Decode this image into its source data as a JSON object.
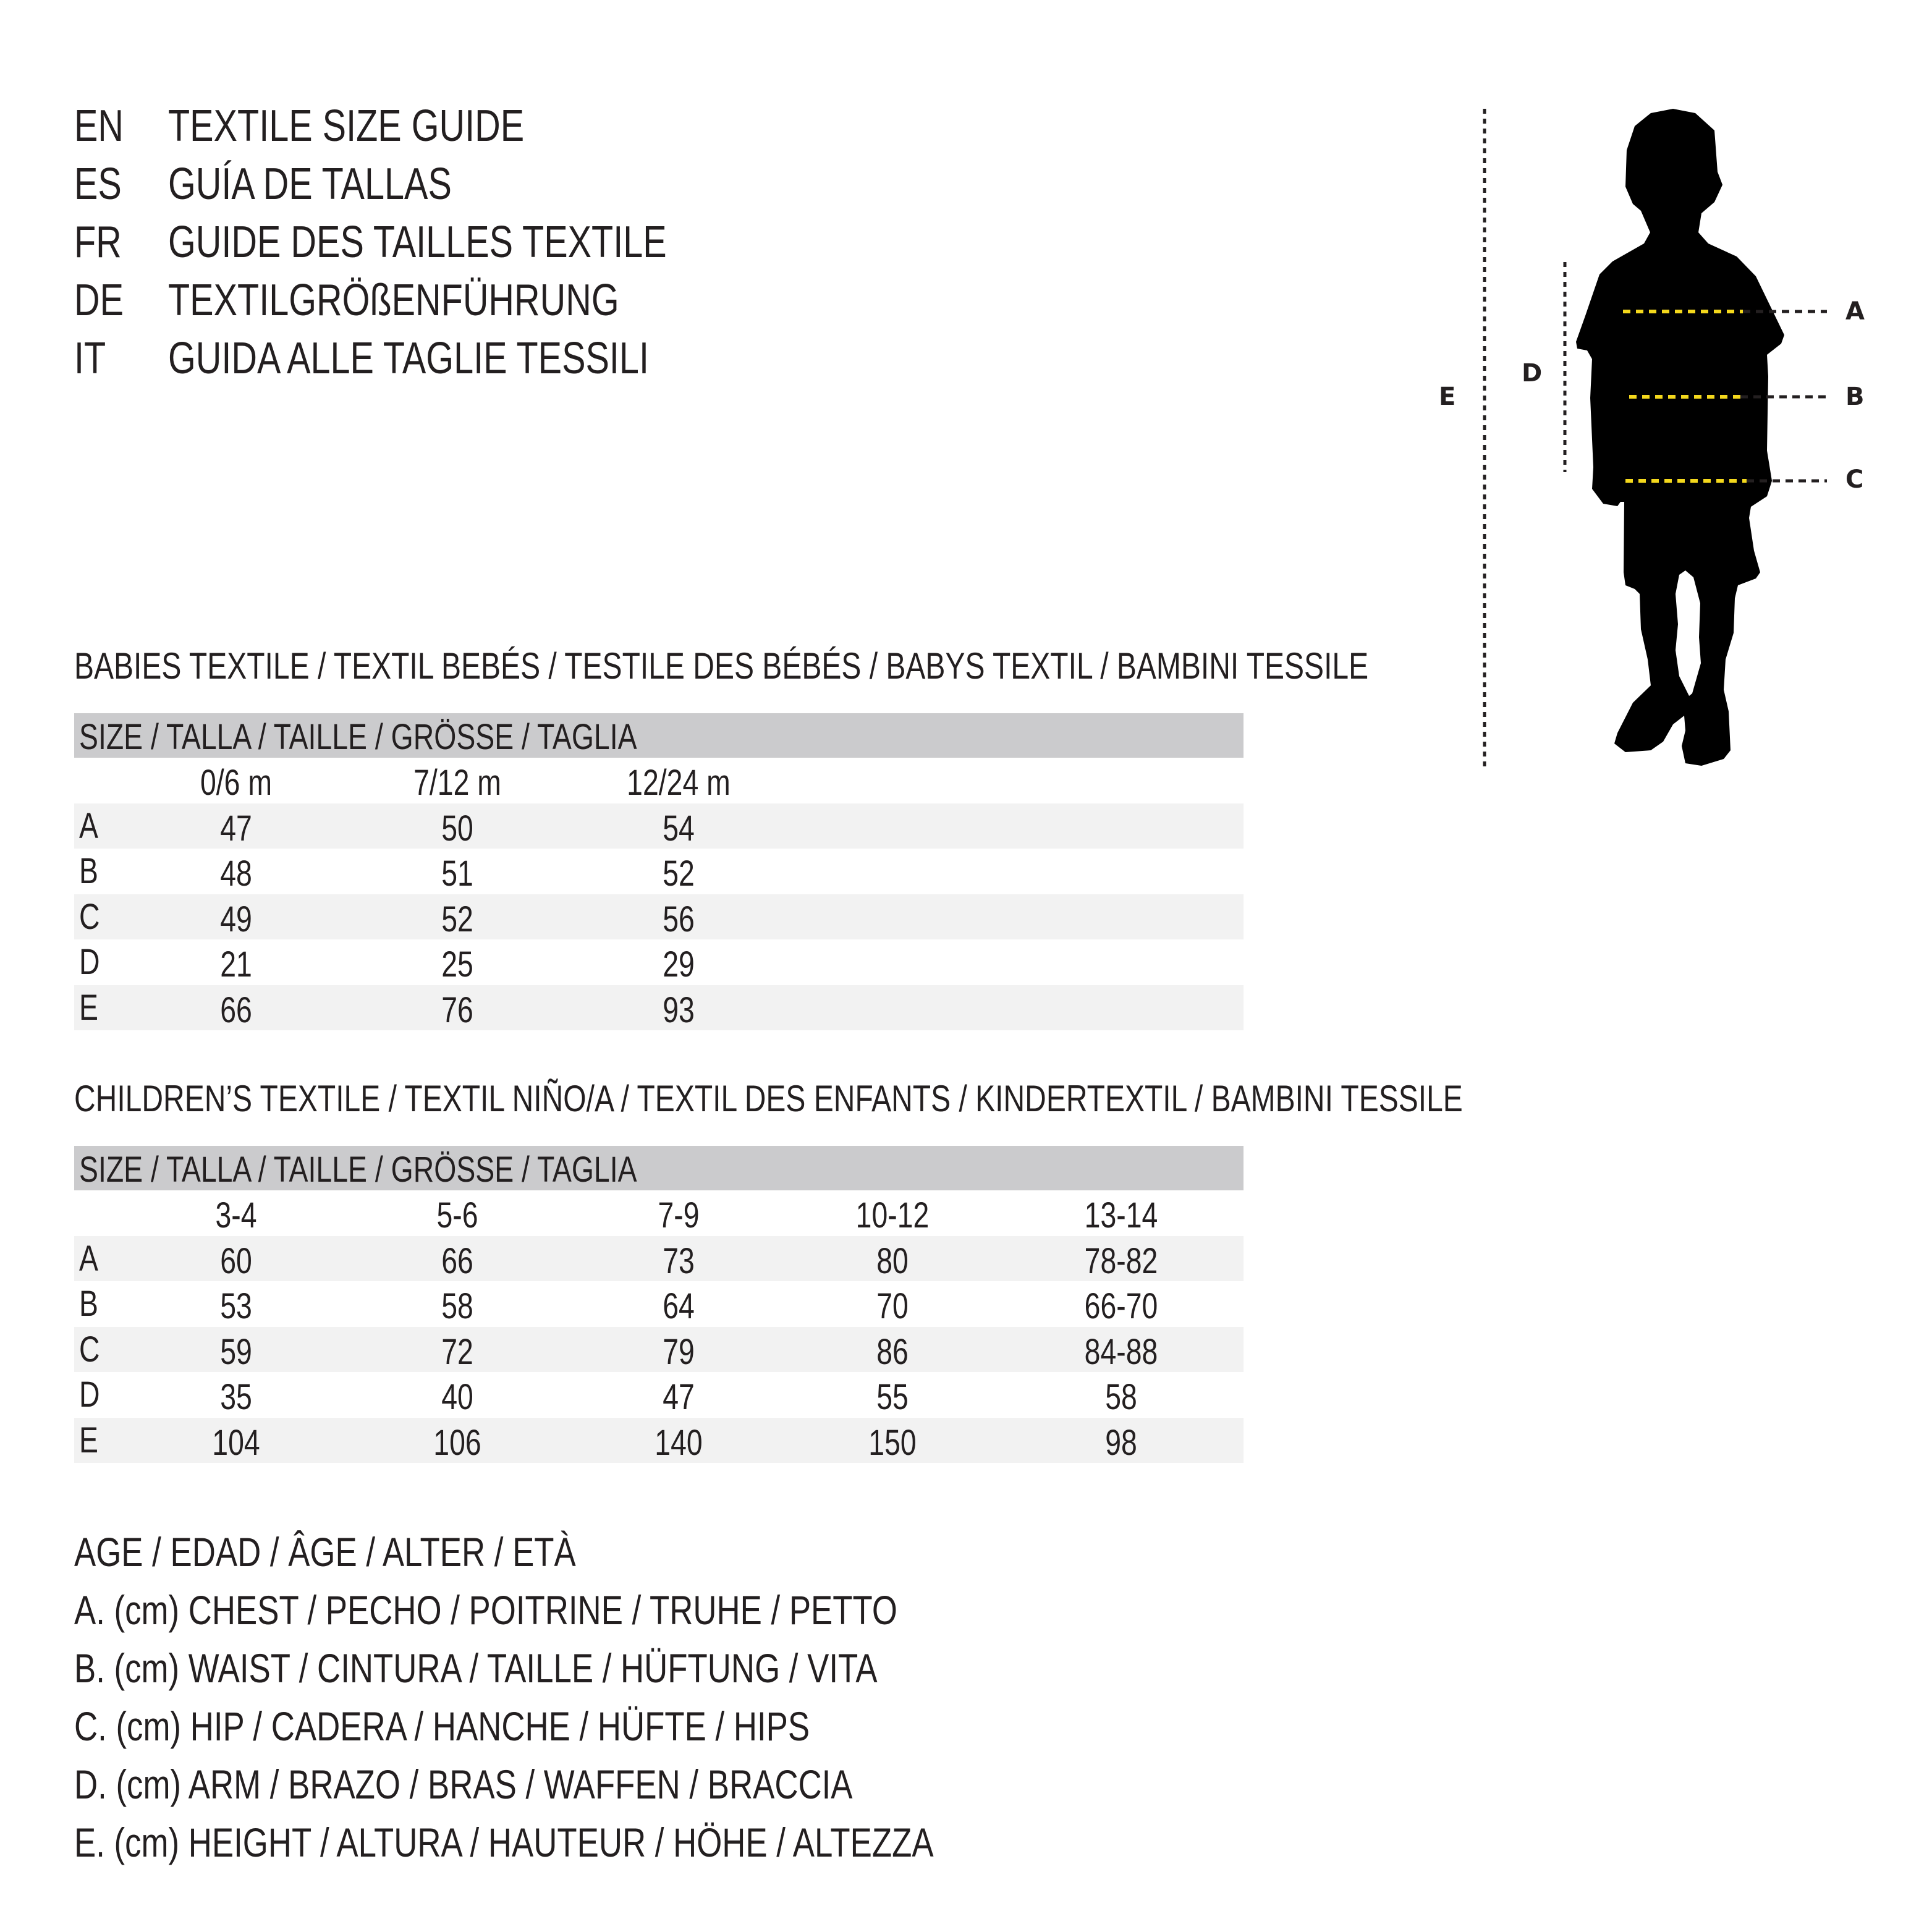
{
  "header": {
    "lines": [
      {
        "lang": "EN",
        "text": "TEXTILE SIZE GUIDE"
      },
      {
        "lang": "ES",
        "text": "GUÍA DE TALLAS"
      },
      {
        "lang": "FR",
        "text": "GUIDE DES TAILLES TEXTILE"
      },
      {
        "lang": "DE",
        "text": "TEXTILGRÖßENFÜHRUNG"
      },
      {
        "lang": "IT",
        "text": "GUIDA ALLE TAGLIE TESSILI"
      }
    ]
  },
  "figure": {
    "labels": {
      "a": "A",
      "b": "B",
      "c": "C",
      "d": "D",
      "e": "E"
    },
    "colors": {
      "silhouette": "#000000",
      "measure_line": "#f4d81c",
      "guide_line": "#231f20"
    }
  },
  "babies": {
    "title": "BABIES TEXTILE / TEXTIL BEBÉS / TESTILE DES BÉBÉS / BABYS TEXTIL / BAMBINI TESSILE",
    "size_header": "SIZE / TALLA / TAILLE / GRÖSSE / TAGLIA",
    "columns": [
      "0/6 m",
      "7/12 m",
      "12/24 m"
    ],
    "rows": [
      {
        "label": "A",
        "values": [
          "47",
          "50",
          "54"
        ]
      },
      {
        "label": "B",
        "values": [
          "48",
          "51",
          "52"
        ]
      },
      {
        "label": "C",
        "values": [
          "49",
          "52",
          "56"
        ]
      },
      {
        "label": "D",
        "values": [
          "21",
          "25",
          "29"
        ]
      },
      {
        "label": "E",
        "values": [
          "66",
          "76",
          "93"
        ]
      }
    ]
  },
  "children": {
    "title": "CHILDREN’S TEXTILE / TEXTIL NIÑO/A / TEXTIL DES ENFANTS / KINDERTEXTIL / BAMBINI TESSILE",
    "size_header": "SIZE / TALLA / TAILLE / GRÖSSE / TAGLIA",
    "columns": [
      "3-4",
      "5-6",
      "7-9",
      "10-12",
      "13-14"
    ],
    "rows": [
      {
        "label": "A",
        "values": [
          "60",
          "66",
          "73",
          "80",
          "78-82"
        ]
      },
      {
        "label": "B",
        "values": [
          "53",
          "58",
          "64",
          "70",
          "66-70"
        ]
      },
      {
        "label": "C",
        "values": [
          "59",
          "72",
          "79",
          "86",
          "84-88"
        ]
      },
      {
        "label": "D",
        "values": [
          "35",
          "40",
          "47",
          "55",
          "58"
        ]
      },
      {
        "label": "E",
        "values": [
          "104",
          "106",
          "140",
          "150",
          "98"
        ]
      }
    ]
  },
  "legend": [
    "AGE / EDAD / ÂGE / ALTER / ETÀ",
    "A. (cm) CHEST / PECHO / POITRINE / TRUHE / PETTO",
    "B. (cm) WAIST / CINTURA / TAILLE / HÜFTUNG / VITA",
    "C. (cm) HIP / CADERA / HANCHE / HÜFTE / HIPS",
    "D. (cm) ARM / BRAZO / BRAS / WAFFEN / BRACCIA",
    "E. (cm) HEIGHT / ALTURA / HAUTEUR / HÖHE / ALTEZZA"
  ]
}
